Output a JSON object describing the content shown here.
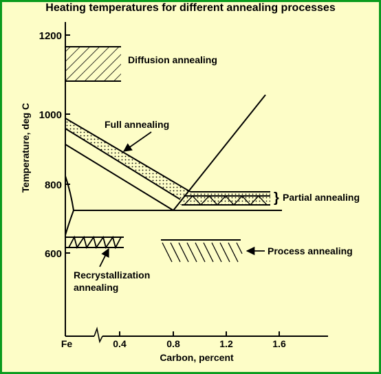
{
  "title": "Heating temperatures for different annealing processes",
  "axes": {
    "x_label": "Carbon, percent",
    "y_label": "Temperature, deg C",
    "x_ticks": [
      "Fe",
      "0.4",
      "0.8",
      "1.2",
      "1.6"
    ],
    "y_ticks": [
      "600",
      "800",
      "1000",
      "1200"
    ]
  },
  "labels": {
    "diffusion": "Diffusion annealing",
    "full": "Full annealing",
    "partial": "Partial annealing",
    "process": "Process annealing",
    "recryst_1": "Recrystallization",
    "recryst_2": "annealing"
  },
  "colors": {
    "background": "#fdfdc7",
    "border": "#0a9b1e",
    "ink": "#000000"
  }
}
